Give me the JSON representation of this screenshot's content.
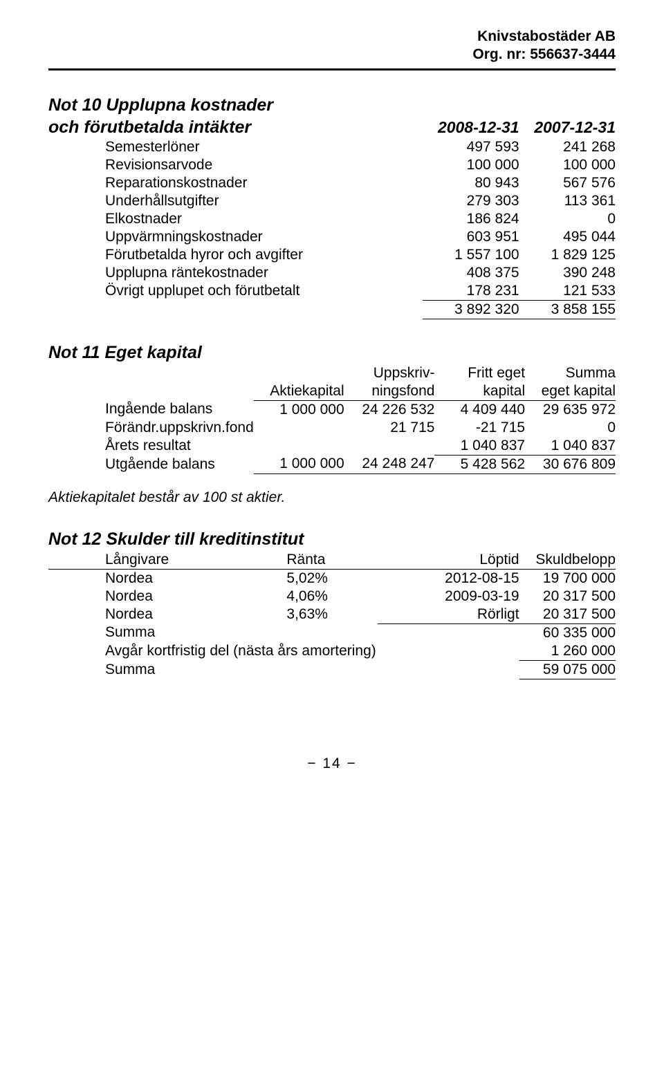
{
  "header": {
    "company": "Knivstabostäder AB",
    "orgnr": "Org. nr: 556637-3444"
  },
  "note10": {
    "title_line1": "Not 10 Upplupna kostnader",
    "title_line2": "och förutbetalda intäkter",
    "col1": "2008-12-31",
    "col2": "2007-12-31",
    "rows": [
      {
        "label": "Semesterlöner",
        "v1": "497 593",
        "v2": "241 268"
      },
      {
        "label": "Revisionsarvode",
        "v1": "100 000",
        "v2": "100 000"
      },
      {
        "label": "Reparationskostnader",
        "v1": "80 943",
        "v2": "567 576"
      },
      {
        "label": "Underhållsutgifter",
        "v1": "279 303",
        "v2": "113 361"
      },
      {
        "label": "Elkostnader",
        "v1": "186 824",
        "v2": "0"
      },
      {
        "label": "Uppvärmningskostnader",
        "v1": "603 951",
        "v2": "495 044"
      },
      {
        "label": "Förutbetalda hyror och avgifter",
        "v1": "1 557 100",
        "v2": "1 829 125"
      },
      {
        "label": "Upplupna räntekostnader",
        "v1": "408 375",
        "v2": "390 248"
      },
      {
        "label": "Övrigt upplupet och förutbetalt",
        "v1": "178 231",
        "v2": "121 533"
      }
    ],
    "total": {
      "v1": "3 892 320",
      "v2": "3 858 155"
    }
  },
  "note11": {
    "title": "Not 11 Eget kapital",
    "headers": {
      "c1": "Aktiekapital",
      "c2a": "Uppskriv-",
      "c2b": "ningsfond",
      "c3a": "Fritt eget",
      "c3b": "kapital",
      "c4a": "Summa",
      "c4b": "eget kapital"
    },
    "rows": {
      "r1": {
        "label": "Ingående balans",
        "c1": "1 000 000",
        "c2": "24 226 532",
        "c3": "4 409 440",
        "c4": "29 635 972"
      },
      "r2": {
        "label": "Förändr.uppskrivn.fond",
        "c1": "",
        "c2": "21 715",
        "c3": "-21 715",
        "c4": "0"
      },
      "r3": {
        "label": "Årets resultat",
        "c1": "",
        "c2": "",
        "c3": "1 040 837",
        "c4": "1 040 837"
      },
      "r4": {
        "label": "Utgående balans",
        "c1": "1 000 000",
        "c2": "24 248 247",
        "c3": "5 428 562",
        "c4": "30 676 809"
      }
    },
    "footnote": "Aktiekapitalet består av 100 st aktier."
  },
  "note12": {
    "title": "Not 12 Skulder till kreditinstitut",
    "headers": {
      "c0": "Långivare",
      "c1": "Ränta",
      "c2": "Löptid",
      "c3": "Skuldbelopp"
    },
    "rows": [
      {
        "c0": "Nordea",
        "c1": "5,02%",
        "c2": "2012-08-15",
        "c3": "19 700 000"
      },
      {
        "c0": "Nordea",
        "c1": "4,06%",
        "c2": "2009-03-19",
        "c3": "20 317 500"
      },
      {
        "c0": "Nordea",
        "c1": "3,63%",
        "c2": "Rörligt",
        "c3": "20 317 500"
      }
    ],
    "subtotal": {
      "label": "Summa",
      "value": "60 335 000"
    },
    "amort": {
      "label": "Avgår kortfristig del (nästa års amortering)",
      "value": "1 260 000"
    },
    "total": {
      "label": "Summa",
      "value": "59 075 000"
    }
  },
  "pagenum": "−  14  −"
}
